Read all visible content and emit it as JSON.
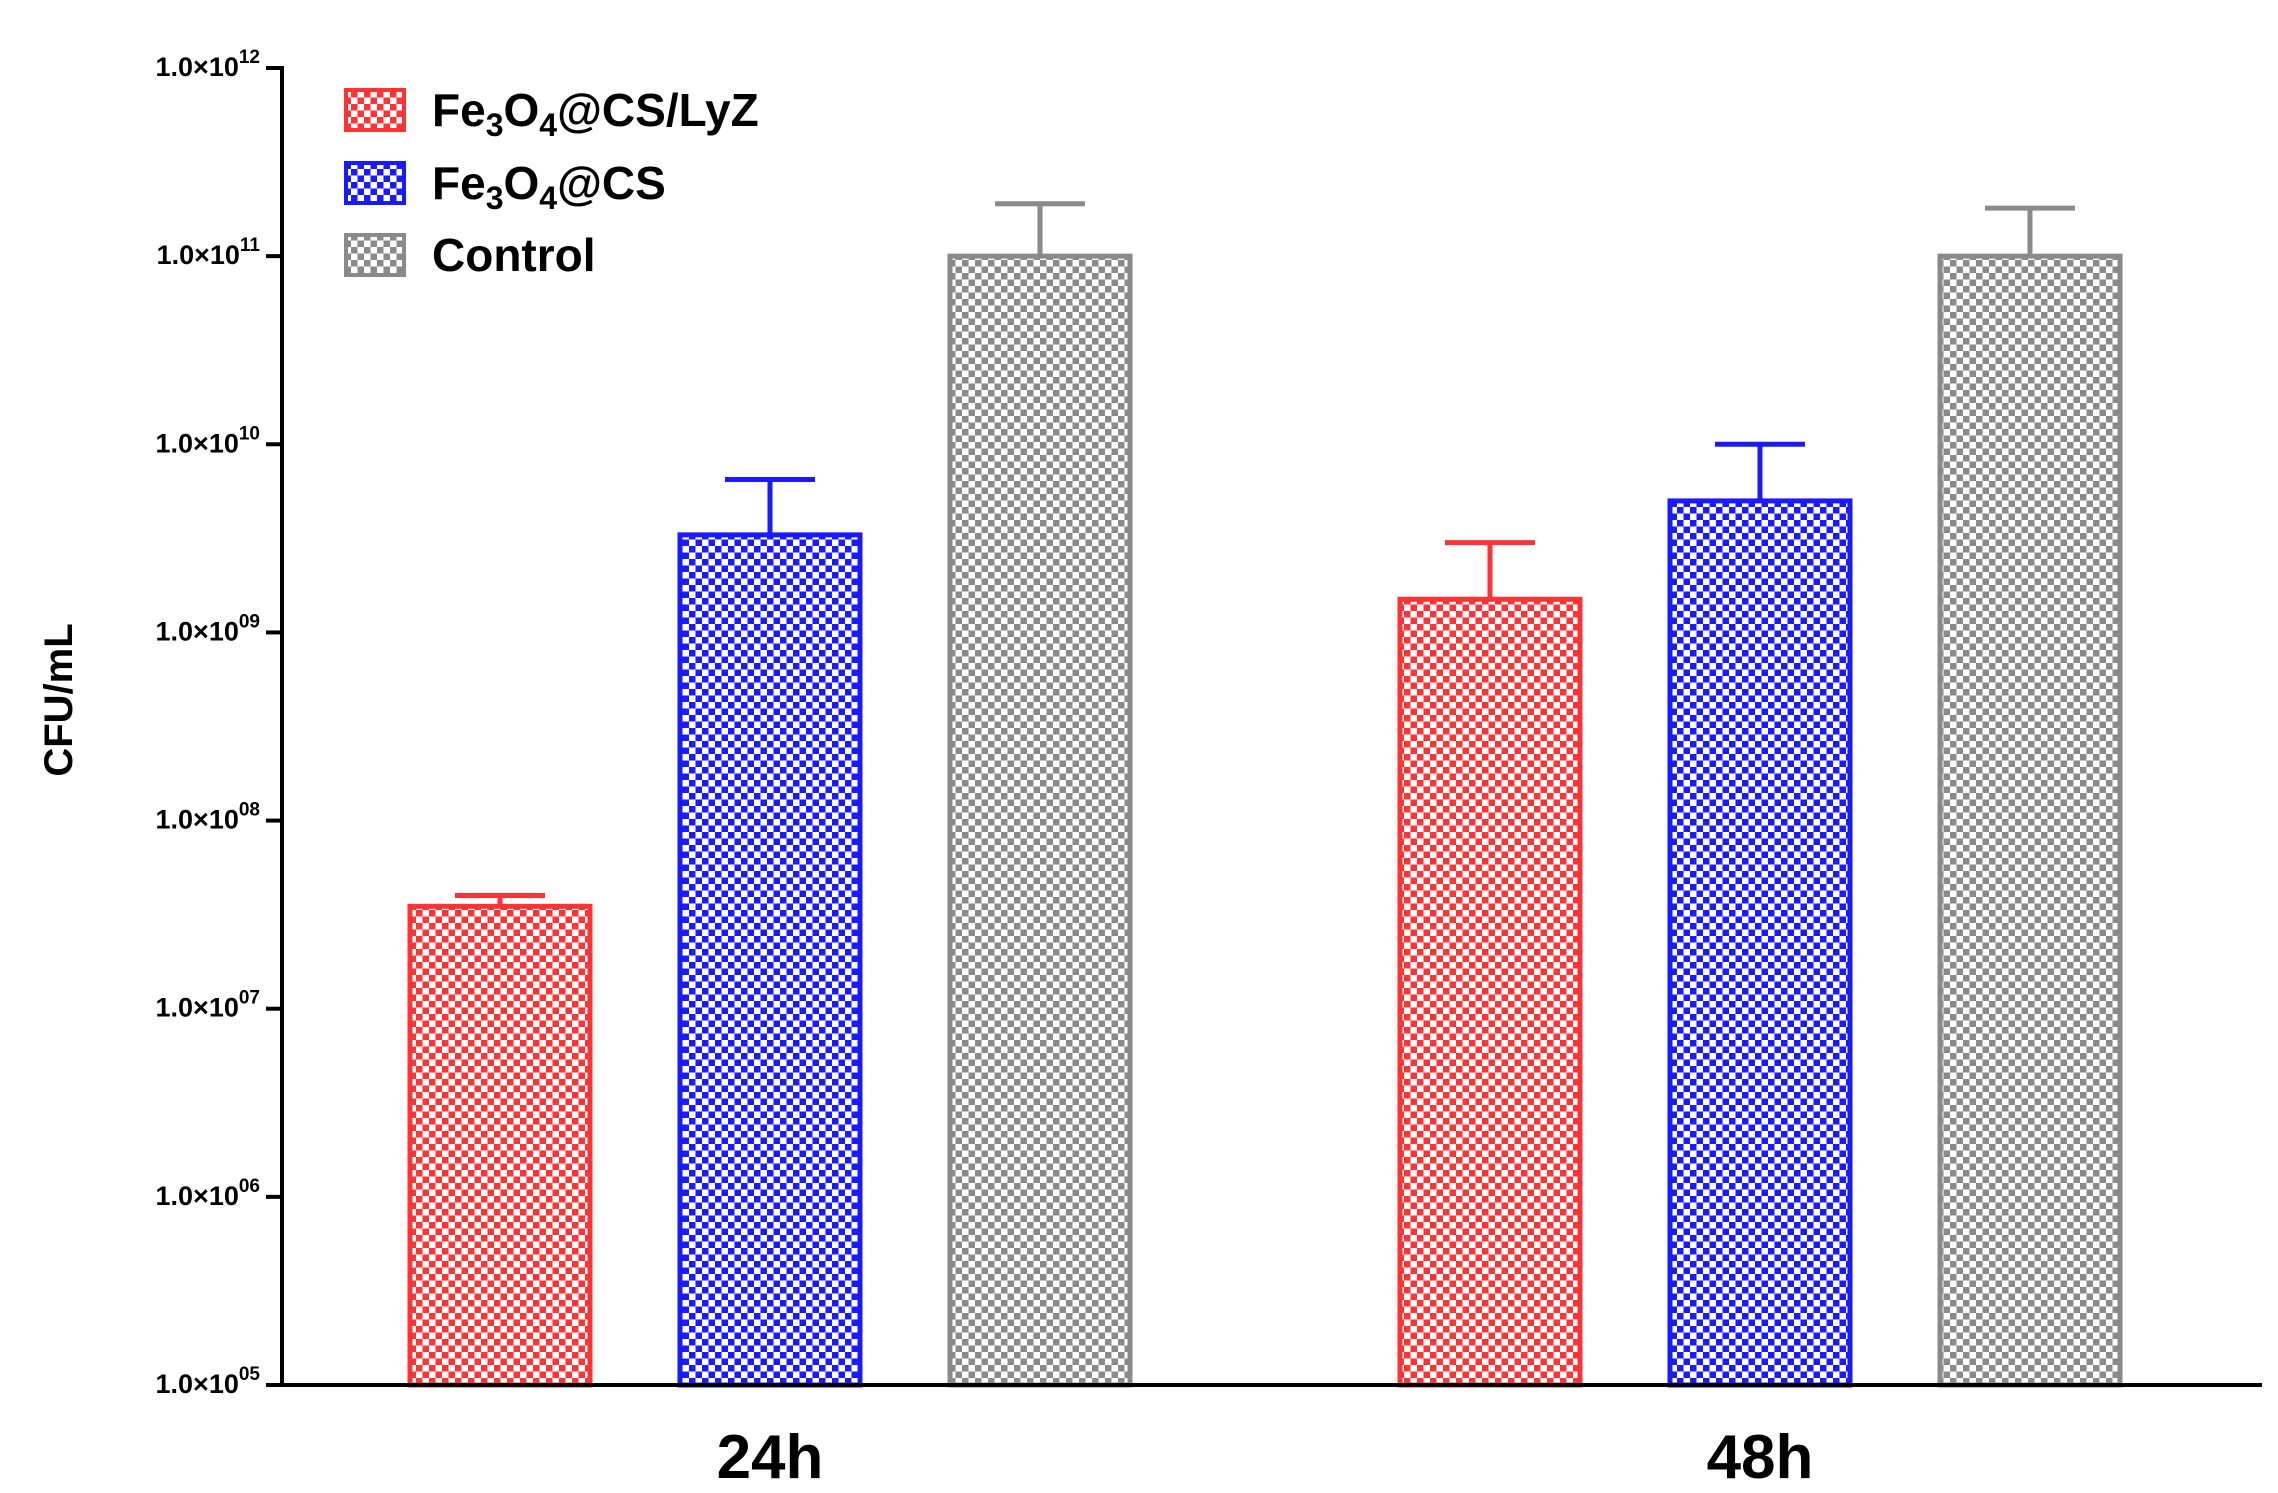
{
  "chart_data": {
    "type": "bar",
    "categories": [
      "24h",
      "48h"
    ],
    "series": [
      {
        "name": "Fe3O4@CS/LyZ",
        "name_main": "Fe",
        "name_sub1": "3",
        "name_mid": "O",
        "name_sub2": "4",
        "name_tail": "@CS/LyZ",
        "color": "#ff3333",
        "values": [
          35000000,
          1500000000
        ],
        "errors": [
          40000000,
          3000000000
        ]
      },
      {
        "name": "Fe3O4@CS",
        "name_main": "Fe",
        "name_sub1": "3",
        "name_mid": "O",
        "name_sub2": "4",
        "name_tail": "@CS",
        "color": "#1a1aff",
        "values": [
          3300000000,
          5000000000
        ],
        "errors": [
          6500000000,
          10000000000
        ]
      },
      {
        "name": "Control",
        "name_main": "Control",
        "name_sub1": "",
        "name_mid": "",
        "name_sub2": "",
        "name_tail": "",
        "color": "#8a8a8a",
        "values": [
          100000000000,
          100000000000
        ],
        "errors": [
          190000000000,
          180000000000
        ]
      }
    ],
    "ylabel": "CFU/mL",
    "xlabel": "",
    "yscale": "log",
    "ylim": [
      100000,
      1000000000000
    ],
    "yticks": [
      {
        "mant": "1.0×10",
        "exp": "12",
        "value": 1000000000000.0
      },
      {
        "mant": "1.0×10",
        "exp": "11",
        "value": 100000000000.0
      },
      {
        "mant": "1.0×10",
        "exp": "10",
        "value": 10000000000.0
      },
      {
        "mant": "1.0×10",
        "exp": "09",
        "value": 1000000000.0
      },
      {
        "mant": "1.0×10",
        "exp": "08",
        "value": 100000000.0
      },
      {
        "mant": "1.0×10",
        "exp": "07",
        "value": 10000000.0
      },
      {
        "mant": "1.0×10",
        "exp": "06",
        "value": 1000000.0
      },
      {
        "mant": "1.0×10",
        "exp": "05",
        "value": 100000.0
      }
    ],
    "legend_position": "top-left",
    "grid": false
  }
}
